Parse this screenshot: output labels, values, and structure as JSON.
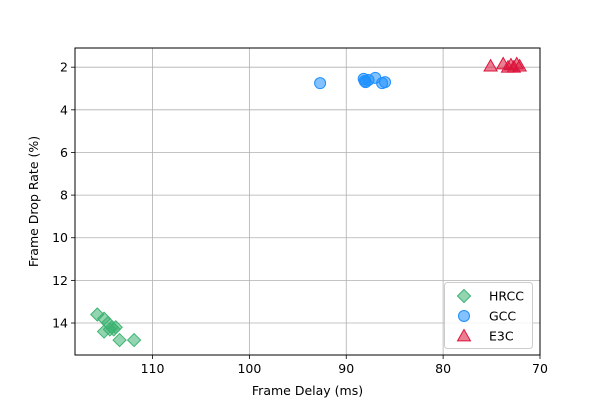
{
  "chart_data": {
    "type": "scatter",
    "title": "",
    "xlabel": "Frame Delay (ms)",
    "ylabel": "Frame Drop Rate (%)",
    "xlim": [
      118,
      70
    ],
    "ylim": [
      15.5,
      1.1
    ],
    "x_inverted": true,
    "y_inverted": true,
    "xticks": [
      110,
      100,
      90,
      80,
      70
    ],
    "yticks": [
      2,
      4,
      6,
      8,
      10,
      12,
      14
    ],
    "grid": true,
    "legend_position": "lower-right",
    "series": [
      {
        "name": "HRCC",
        "marker": "diamond",
        "color": "#3cb371",
        "points": [
          [
            115.7,
            13.6
          ],
          [
            115.0,
            13.8
          ],
          [
            114.6,
            14.0
          ],
          [
            115.0,
            14.4
          ],
          [
            114.4,
            14.3
          ],
          [
            114.0,
            14.3
          ],
          [
            113.8,
            14.2
          ],
          [
            114.2,
            14.2
          ],
          [
            113.4,
            14.8
          ],
          [
            111.9,
            14.8
          ]
        ]
      },
      {
        "name": "GCC",
        "marker": "circle",
        "color": "#1e90ff",
        "points": [
          [
            92.7,
            2.75
          ],
          [
            88.2,
            2.55
          ],
          [
            88.0,
            2.7
          ],
          [
            87.7,
            2.6
          ],
          [
            87.0,
            2.5
          ],
          [
            86.3,
            2.75
          ],
          [
            86.0,
            2.7
          ],
          [
            88.1,
            2.65
          ]
        ]
      },
      {
        "name": "E3C",
        "marker": "triangle",
        "color": "#dc143c",
        "points": [
          [
            75.1,
            1.95
          ],
          [
            73.8,
            1.85
          ],
          [
            73.3,
            2.0
          ],
          [
            73.0,
            1.9
          ],
          [
            72.7,
            2.0
          ],
          [
            72.4,
            1.85
          ],
          [
            72.1,
            1.95
          ]
        ]
      }
    ]
  }
}
